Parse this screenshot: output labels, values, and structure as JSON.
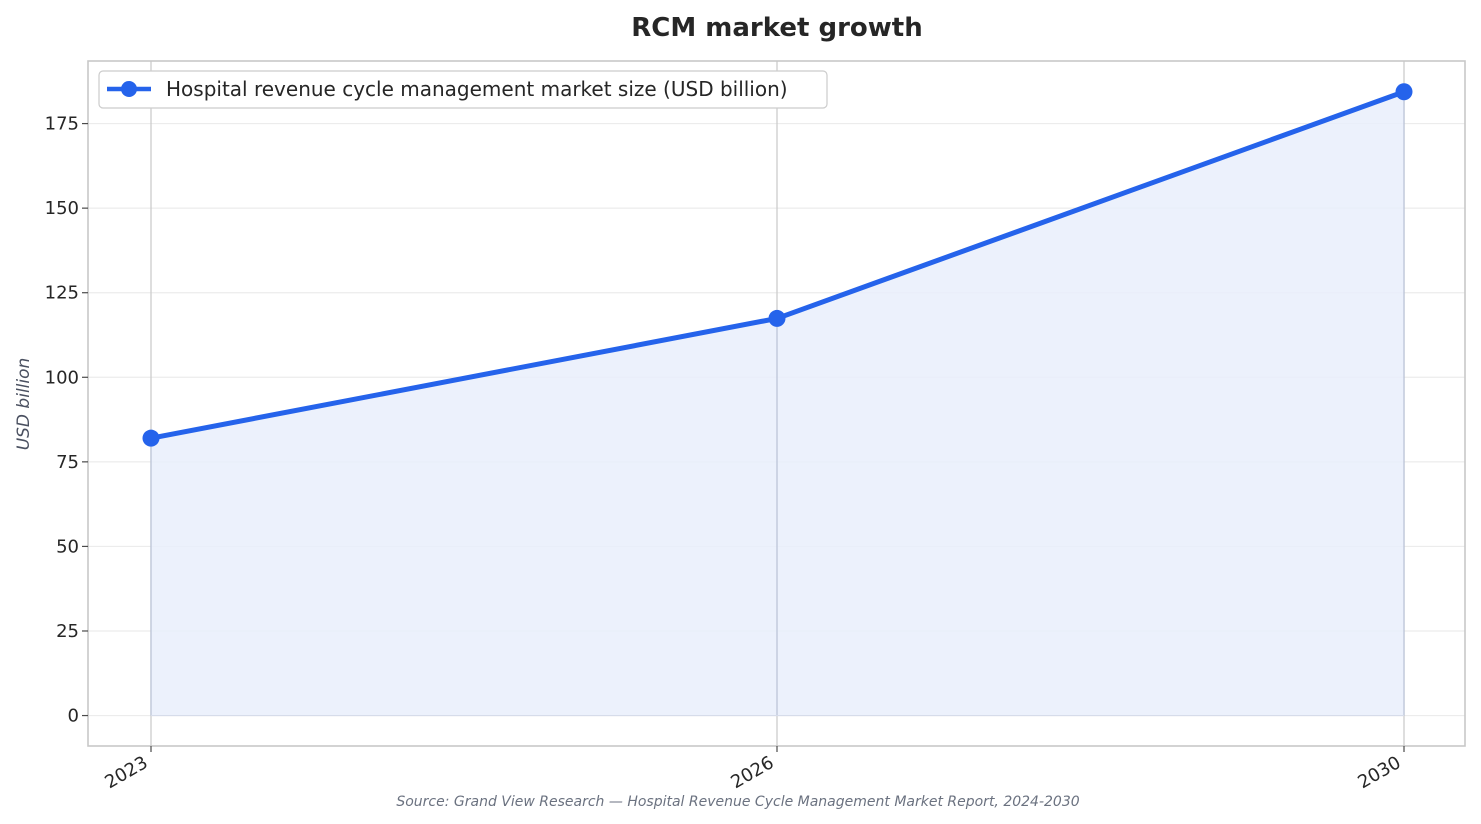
{
  "chart_data": {
    "type": "area",
    "title": "RCM market growth",
    "xlabel": "",
    "ylabel": "USD billion",
    "categories": [
      "2023",
      "2026",
      "2030"
    ],
    "x": [
      2023,
      2026,
      2030
    ],
    "series": [
      {
        "name": "Hospital revenue cycle management market size (USD billion)",
        "values": [
          82,
          117.4,
          184.4
        ],
        "color": "#2563eb",
        "fill_color": "#e9effb"
      }
    ],
    "ylim": [
      -9,
      193.5
    ],
    "yticks": [
      0,
      25,
      50,
      75,
      100,
      125,
      150,
      175
    ],
    "grid": true,
    "legend_position": "top-left",
    "source": "Source: Grand View Research — Hospital Revenue Cycle Management Market Report, 2024-2030"
  }
}
